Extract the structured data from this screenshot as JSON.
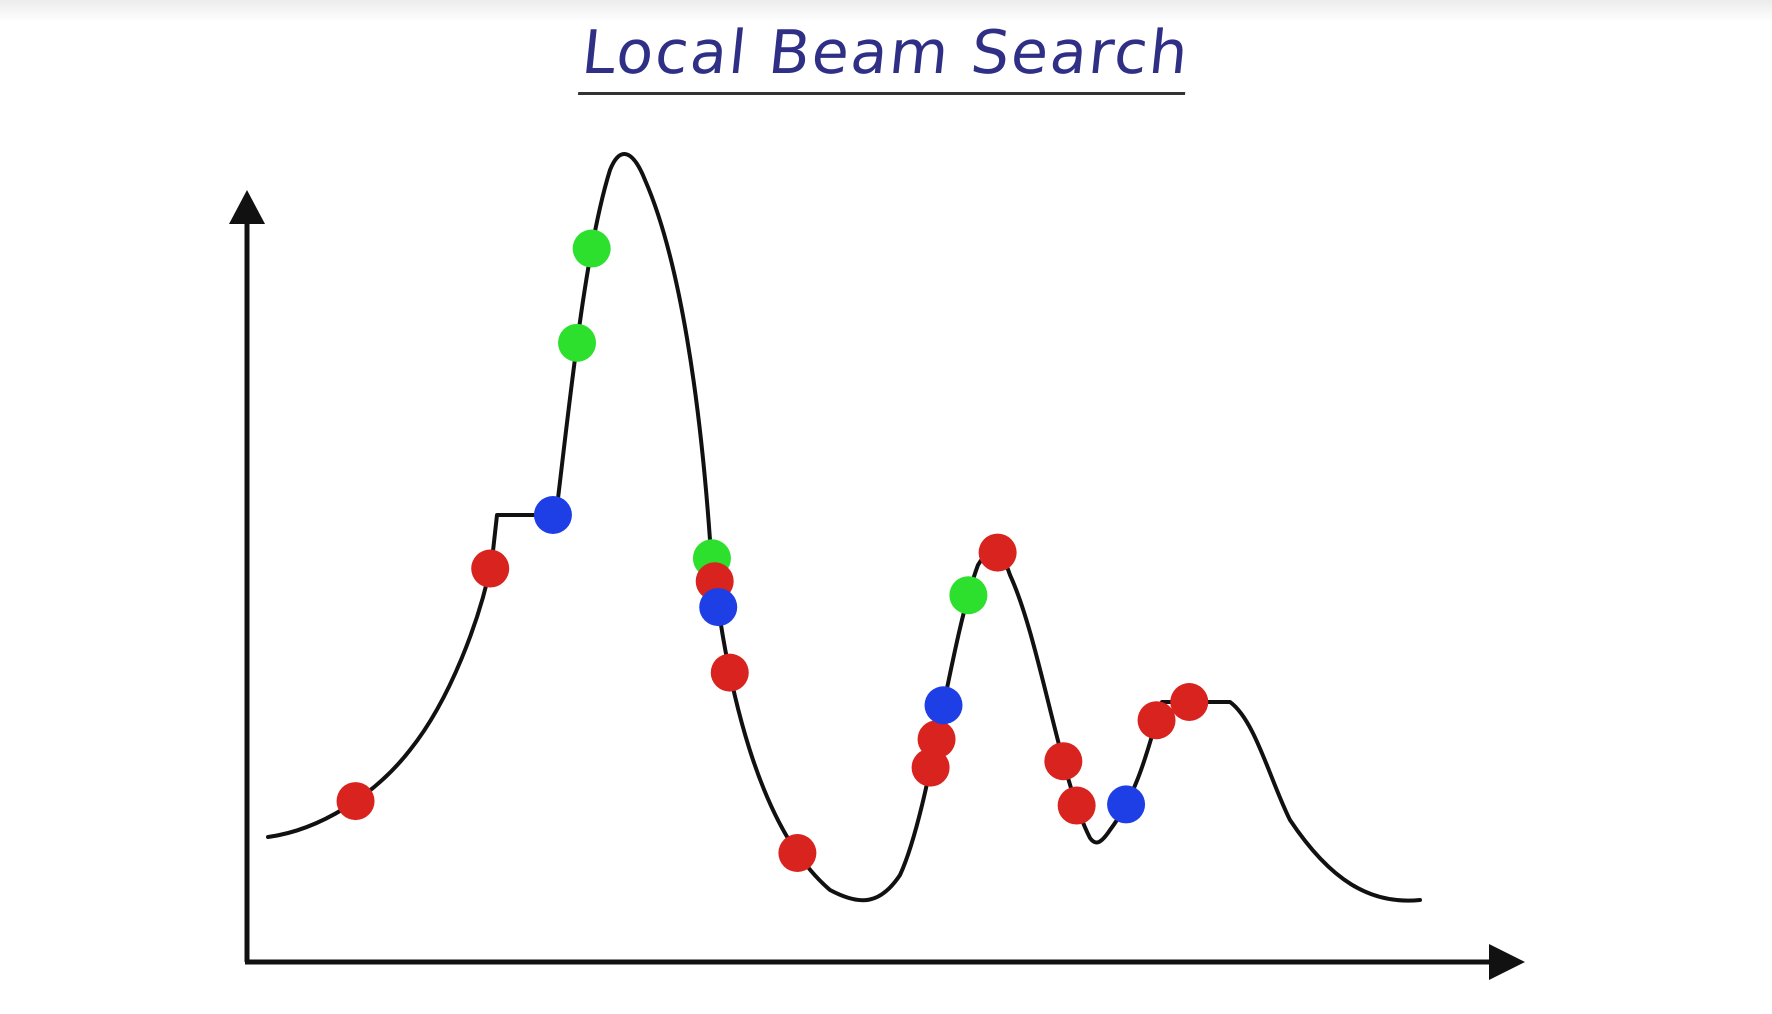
{
  "title": "Local Beam Search",
  "colors": {
    "title": "#2f2f86",
    "curve": "#111111",
    "axis": "#111111",
    "red": "#d8231e",
    "blue": "#1f3fe6",
    "green": "#2ee02e"
  },
  "points": [
    {
      "color": "red",
      "t": 0.033
    },
    {
      "color": "red",
      "t": 0.128
    },
    {
      "color": "blue",
      "t": 0.166
    },
    {
      "color": "green",
      "t": 0.227
    },
    {
      "color": "green",
      "t": 0.26
    },
    {
      "color": "green",
      "t": 0.441
    },
    {
      "color": "red",
      "t": 0.449
    },
    {
      "color": "blue",
      "t": 0.458
    },
    {
      "color": "red",
      "t": 0.481
    },
    {
      "color": "red",
      "t": 0.548
    },
    {
      "color": "red",
      "t": 0.632
    },
    {
      "color": "red",
      "t": 0.642
    },
    {
      "color": "blue",
      "t": 0.654
    },
    {
      "color": "green",
      "t": 0.693
    },
    {
      "color": "red",
      "t": 0.713
    },
    {
      "color": "red",
      "t": 0.789
    },
    {
      "color": "red",
      "t": 0.805
    },
    {
      "color": "blue",
      "t": 0.837
    },
    {
      "color": "red",
      "t": 0.868
    },
    {
      "color": "red",
      "t": 0.884
    }
  ]
}
